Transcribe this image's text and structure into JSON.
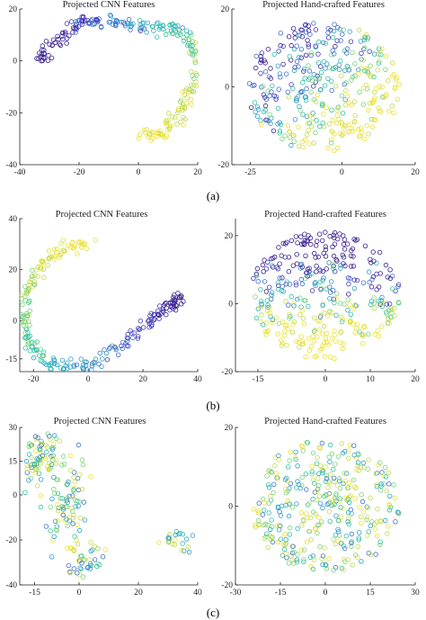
{
  "captions": [
    "(a)",
    "(b)",
    "(c)"
  ],
  "colors": {
    "palette": [
      "#3b1f8e",
      "#4338b8",
      "#3f6fcf",
      "#2ea0c8",
      "#2fc0a6",
      "#7cd27a",
      "#c3d950",
      "#e9e12f"
    ]
  },
  "chart_data": [
    {
      "type": "scatter",
      "title": "Projected CNN Features",
      "xlim": [
        -40,
        20
      ],
      "ylim": [
        -40,
        20
      ],
      "xticks": [
        "-40",
        "-20",
        "0",
        "20"
      ],
      "yticks": [
        "-40",
        "-20",
        "0",
        "20"
      ],
      "shape": "arc",
      "color_order": "purple-to-yellow",
      "path": [
        [
          -33,
          -1,
          0.0
        ],
        [
          -30,
          5,
          0.05
        ],
        [
          -24,
          11,
          0.12
        ],
        [
          -19,
          15,
          0.2
        ],
        [
          -14,
          16,
          0.28
        ],
        [
          -8,
          15,
          0.36
        ],
        [
          0,
          13,
          0.44
        ],
        [
          8,
          13,
          0.5
        ],
        [
          14,
          12,
          0.56
        ],
        [
          18,
          7,
          0.62
        ],
        [
          20,
          0,
          0.68
        ],
        [
          19,
          -8,
          0.75
        ],
        [
          16,
          -16,
          0.82
        ],
        [
          12,
          -23,
          0.88
        ],
        [
          7,
          -28,
          0.94
        ],
        [
          2,
          -30,
          1.0
        ]
      ]
    },
    {
      "type": "scatter",
      "title": "Projected Hand-crafted Features",
      "xlim": [
        -30,
        20
      ],
      "ylim": [
        -20,
        20
      ],
      "xticks": [
        "-25",
        "0",
        "20"
      ],
      "yticks": [
        "-20",
        "0",
        "20"
      ],
      "shape": "blob",
      "color_order": "purple-upper-left"
    },
    {
      "type": "scatter",
      "title": "Projected CNN Features",
      "xlim": [
        -25,
        40
      ],
      "ylim": [
        -20,
        40
      ],
      "xticks": [
        "-20",
        "0",
        "20",
        "40"
      ],
      "yticks": [
        "-15",
        "0",
        "20",
        "40"
      ],
      "shape": "arc",
      "color_order": "yellow-to-purple",
      "path": [
        [
          0,
          31,
          0.0
        ],
        [
          -8,
          28,
          0.05
        ],
        [
          -16,
          23,
          0.12
        ],
        [
          -21,
          15,
          0.2
        ],
        [
          -23,
          7,
          0.27
        ],
        [
          -23,
          -2,
          0.33
        ],
        [
          -21,
          -10,
          0.4
        ],
        [
          -16,
          -16,
          0.47
        ],
        [
          -8,
          -18,
          0.54
        ],
        [
          2,
          -17,
          0.62
        ],
        [
          12,
          -10,
          0.72
        ],
        [
          20,
          -3,
          0.8
        ],
        [
          26,
          3,
          0.88
        ],
        [
          31,
          7,
          0.95
        ],
        [
          33,
          9,
          1.0
        ]
      ]
    },
    {
      "type": "scatter",
      "title": "Projected Hand-crafted Features",
      "xlim": [
        -20,
        20
      ],
      "ylim": [
        -20,
        25
      ],
      "xticks": [
        "-15",
        "0",
        "10",
        "20"
      ],
      "yticks": [
        "-20",
        "0",
        "20"
      ],
      "shape": "blob",
      "color_order": "purple-top-yellow-bottom"
    },
    {
      "type": "scatter",
      "title": "Projected CNN Features",
      "xlim": [
        -20,
        40
      ],
      "ylim": [
        -40,
        30
      ],
      "xticks": [
        "-15",
        "0",
        "20",
        "40"
      ],
      "yticks": [
        "-40",
        "-20",
        "0",
        "15",
        "30"
      ],
      "shape": "clusters",
      "color_order": "mixed"
    },
    {
      "type": "scatter",
      "title": "Projected Hand-crafted Features",
      "xlim": [
        -30,
        30
      ],
      "ylim": [
        -20,
        20
      ],
      "xticks": [
        "-30",
        "-15",
        "0",
        "15",
        "30"
      ],
      "yticks": [
        "-20",
        "0",
        "20"
      ],
      "shape": "blob",
      "color_order": "mixed"
    }
  ]
}
